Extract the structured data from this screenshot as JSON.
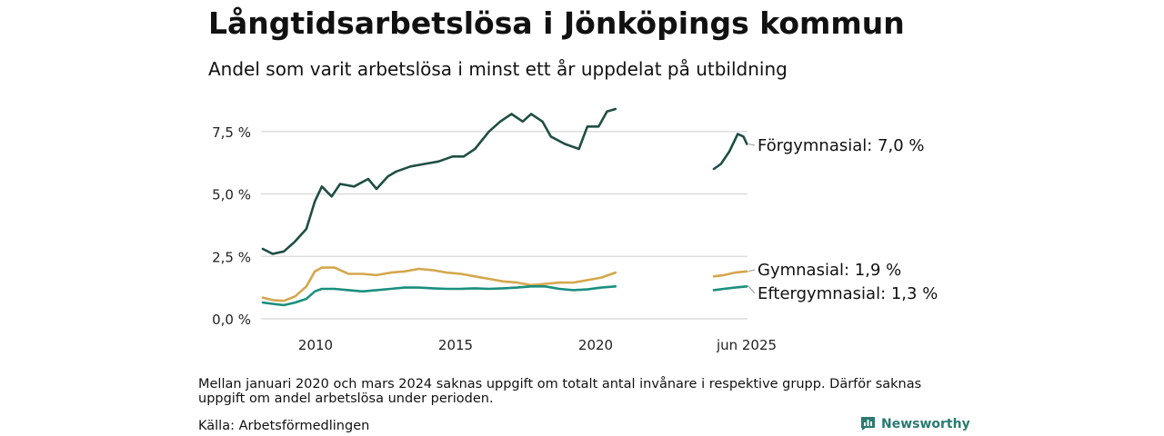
{
  "title": "Långtidsarbetslösa i Jönköpings kommun",
  "subtitle": "Andel som varit arbetslösa i minst ett år uppdelat på utbildning",
  "note": "Mellan januari 2020 och mars 2024 saknas uppgift om totalt antal invånare i respektive grupp. Därför saknas uppgift om andel arbetslösa under perioden.",
  "source": "Källa: Arbetsförmedlingen",
  "logo_text": "Newsworthy",
  "chart_data": {
    "type": "line",
    "x_labels": [
      "2010",
      "2015",
      "2020",
      "jun 2025"
    ],
    "y_ticks": [
      0,
      2.5,
      5,
      7.5
    ],
    "y_tick_labels": [
      "0,0 %",
      "2,5 %",
      "5,0 %",
      "7,5 %"
    ],
    "ylim": [
      0,
      8.8
    ],
    "grid": "horizontal",
    "series": [
      {
        "name": "Förgymnasial",
        "end_label": "Förgymnasial: 7,0 %",
        "color": "#1f4e45",
        "segments": [
          [
            [
              2008.25,
              2.8
            ],
            [
              2008.6,
              2.6
            ],
            [
              2009.0,
              2.7
            ],
            [
              2009.4,
              3.1
            ],
            [
              2009.8,
              3.6
            ],
            [
              2010.1,
              4.7
            ],
            [
              2010.35,
              5.3
            ],
            [
              2010.7,
              4.9
            ],
            [
              2011.0,
              5.4
            ],
            [
              2011.5,
              5.3
            ],
            [
              2012.0,
              5.6
            ],
            [
              2012.3,
              5.2
            ],
            [
              2012.7,
              5.7
            ],
            [
              2013.0,
              5.9
            ],
            [
              2013.5,
              6.1
            ],
            [
              2014.0,
              6.2
            ],
            [
              2014.5,
              6.3
            ],
            [
              2015.0,
              6.5
            ],
            [
              2015.4,
              6.5
            ],
            [
              2015.8,
              6.8
            ],
            [
              2016.3,
              7.5
            ],
            [
              2016.7,
              7.9
            ],
            [
              2017.1,
              8.2
            ],
            [
              2017.5,
              7.9
            ],
            [
              2017.8,
              8.2
            ],
            [
              2018.2,
              7.9
            ],
            [
              2018.5,
              7.3
            ],
            [
              2019.0,
              7.0
            ],
            [
              2019.5,
              6.8
            ],
            [
              2019.8,
              7.7
            ],
            [
              2020.2,
              7.7
            ],
            [
              2020.5,
              8.3
            ],
            [
              2020.8,
              8.4
            ]
          ],
          [
            [
              2024.25,
              6.0
            ],
            [
              2024.5,
              6.2
            ],
            [
              2024.8,
              6.7
            ],
            [
              2025.1,
              7.4
            ],
            [
              2025.3,
              7.3
            ],
            [
              2025.42,
              7.0
            ]
          ]
        ]
      },
      {
        "name": "Gymnasial",
        "end_label": "Gymnasial: 1,9 %",
        "color": "#d4a74c",
        "segments": [
          [
            [
              2008.25,
              0.85
            ],
            [
              2008.6,
              0.75
            ],
            [
              2009.0,
              0.72
            ],
            [
              2009.4,
              0.9
            ],
            [
              2009.8,
              1.3
            ],
            [
              2010.1,
              1.9
            ],
            [
              2010.35,
              2.05
            ],
            [
              2010.8,
              2.05
            ],
            [
              2011.3,
              1.8
            ],
            [
              2011.8,
              1.8
            ],
            [
              2012.3,
              1.75
            ],
            [
              2012.8,
              1.85
            ],
            [
              2013.3,
              1.9
            ],
            [
              2013.8,
              2.0
            ],
            [
              2014.3,
              1.95
            ],
            [
              2014.8,
              1.85
            ],
            [
              2015.3,
              1.8
            ],
            [
              2015.8,
              1.7
            ],
            [
              2016.3,
              1.6
            ],
            [
              2016.8,
              1.5
            ],
            [
              2017.3,
              1.45
            ],
            [
              2017.8,
              1.35
            ],
            [
              2018.3,
              1.4
            ],
            [
              2018.8,
              1.45
            ],
            [
              2019.3,
              1.45
            ],
            [
              2019.8,
              1.55
            ],
            [
              2020.3,
              1.65
            ],
            [
              2020.8,
              1.85
            ]
          ],
          [
            [
              2024.25,
              1.7
            ],
            [
              2024.6,
              1.75
            ],
            [
              2025.0,
              1.85
            ],
            [
              2025.42,
              1.9
            ]
          ]
        ]
      },
      {
        "name": "Eftergymnasial",
        "end_label": "Eftergymnasial: 1,3 %",
        "color": "#1a8f7e",
        "segments": [
          [
            [
              2008.25,
              0.65
            ],
            [
              2008.6,
              0.6
            ],
            [
              2009.0,
              0.55
            ],
            [
              2009.4,
              0.65
            ],
            [
              2009.8,
              0.8
            ],
            [
              2010.1,
              1.1
            ],
            [
              2010.35,
              1.2
            ],
            [
              2010.8,
              1.2
            ],
            [
              2011.3,
              1.15
            ],
            [
              2011.8,
              1.1
            ],
            [
              2012.3,
              1.15
            ],
            [
              2012.8,
              1.2
            ],
            [
              2013.3,
              1.25
            ],
            [
              2013.8,
              1.25
            ],
            [
              2014.3,
              1.22
            ],
            [
              2014.8,
              1.2
            ],
            [
              2015.3,
              1.2
            ],
            [
              2015.8,
              1.22
            ],
            [
              2016.3,
              1.2
            ],
            [
              2016.8,
              1.22
            ],
            [
              2017.3,
              1.25
            ],
            [
              2017.8,
              1.3
            ],
            [
              2018.3,
              1.3
            ],
            [
              2018.8,
              1.2
            ],
            [
              2019.3,
              1.15
            ],
            [
              2019.8,
              1.18
            ],
            [
              2020.3,
              1.25
            ],
            [
              2020.8,
              1.3
            ]
          ],
          [
            [
              2024.25,
              1.15
            ],
            [
              2024.6,
              1.2
            ],
            [
              2025.0,
              1.25
            ],
            [
              2025.42,
              1.3
            ]
          ]
        ]
      }
    ]
  }
}
